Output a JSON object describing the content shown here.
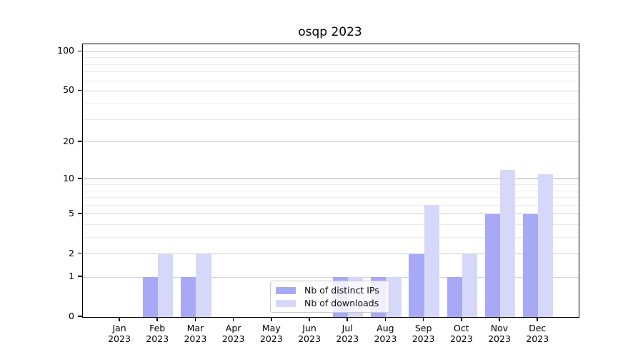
{
  "chart_data": {
    "type": "bar",
    "title": "osqp 2023",
    "year": "2023",
    "months": [
      "Jan",
      "Feb",
      "Mar",
      "Apr",
      "May",
      "Jun",
      "Jul",
      "Aug",
      "Sep",
      "Oct",
      "Nov",
      "Dec"
    ],
    "series": [
      {
        "name": "Nb of distinct IPs",
        "color": "#a8a9f6",
        "values": [
          0,
          1,
          1,
          0,
          0,
          0,
          1,
          1,
          2,
          1,
          5,
          5
        ]
      },
      {
        "name": "Nb of downloads",
        "color": "#d6d8fa",
        "values": [
          0,
          2,
          2,
          0,
          0,
          0,
          1,
          1,
          6,
          2,
          12,
          11
        ]
      }
    ],
    "y_scale": "log1p",
    "y_axis": {
      "tick_labels": [
        0,
        1,
        2,
        5,
        10,
        20,
        50,
        100
      ],
      "major_gridlines": [
        1,
        2,
        5,
        10,
        20,
        50,
        100
      ],
      "minor_gridlines": [
        3,
        4,
        6,
        7,
        8,
        9,
        30,
        40,
        60,
        70,
        80,
        90
      ],
      "ylim": [
        0,
        114
      ],
      "emphasized_gridline": 10
    },
    "x_axis": {
      "tick_label_format": "Month over Year, two lines"
    },
    "legend": {
      "entries": [
        "Nb of distinct IPs",
        "Nb of downloads"
      ],
      "position": "lower center"
    },
    "grid": true,
    "colors": {
      "distinct_ips": "#a8a9f6",
      "downloads": "#d6d8fa",
      "major_grid": "#d2d2d2",
      "emphasized_grid": "#a9a9a9",
      "minor_grid": "#ebebeb",
      "spine": "#000000"
    }
  }
}
